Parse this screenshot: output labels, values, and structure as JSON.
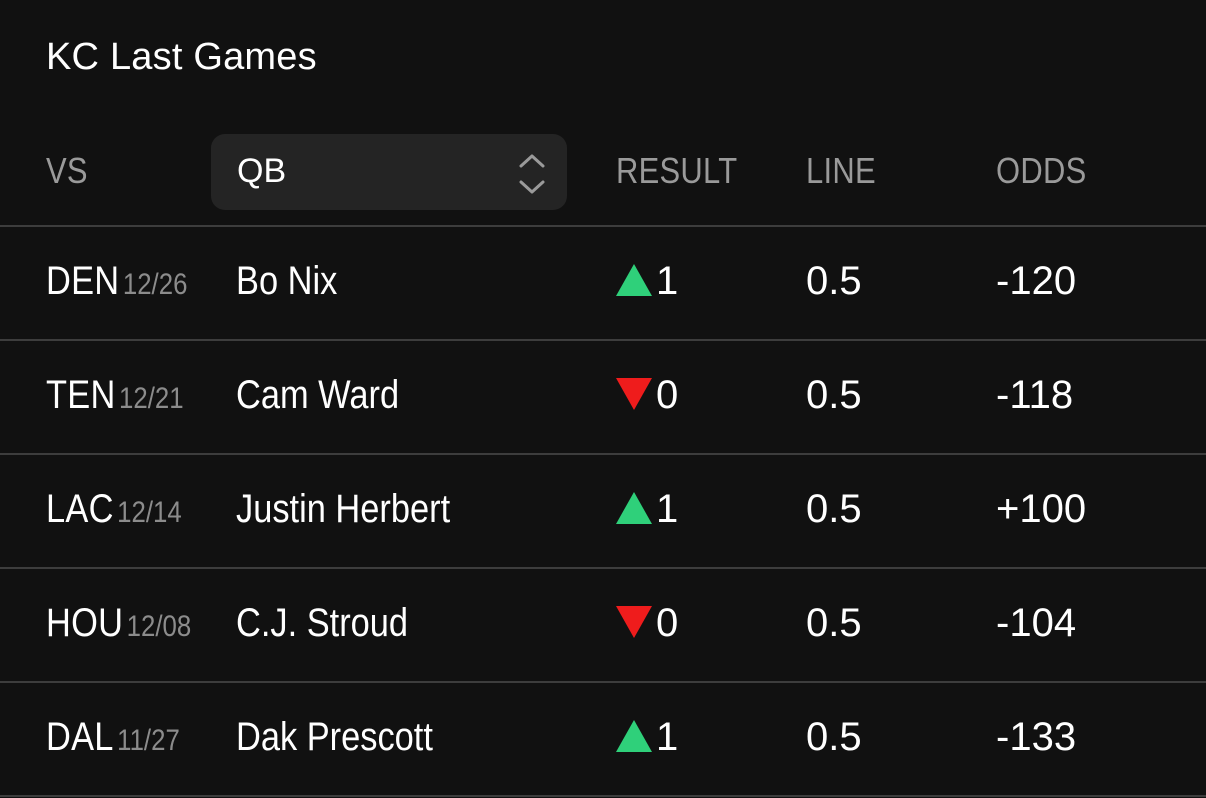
{
  "title": "KC Last Games",
  "columns": {
    "vs": "VS",
    "qb": "QB",
    "result": "RESULT",
    "line": "LINE",
    "odds": "ODDS"
  },
  "colors": {
    "up": "#2fd07a",
    "down": "#ef1c1c",
    "background": "#111111",
    "select_bg": "#242424",
    "muted": "#9a9a9a"
  },
  "rows": [
    {
      "team": "DEN",
      "date": "12/26",
      "qb": "Bo Nix",
      "result_dir": "up",
      "result": "1",
      "line": "0.5",
      "odds": "-120"
    },
    {
      "team": "TEN",
      "date": "12/21",
      "qb": "Cam Ward",
      "result_dir": "down",
      "result": "0",
      "line": "0.5",
      "odds": "-118"
    },
    {
      "team": "LAC",
      "date": "12/14",
      "qb": "Justin Herbert",
      "result_dir": "up",
      "result": "1",
      "line": "0.5",
      "odds": "+100"
    },
    {
      "team": "HOU",
      "date": "12/08",
      "qb": "C.J. Stroud",
      "result_dir": "down",
      "result": "0",
      "line": "0.5",
      "odds": "-104"
    },
    {
      "team": "DAL",
      "date": "11/27",
      "qb": "Dak Prescott",
      "result_dir": "up",
      "result": "1",
      "line": "0.5",
      "odds": "-133"
    }
  ]
}
